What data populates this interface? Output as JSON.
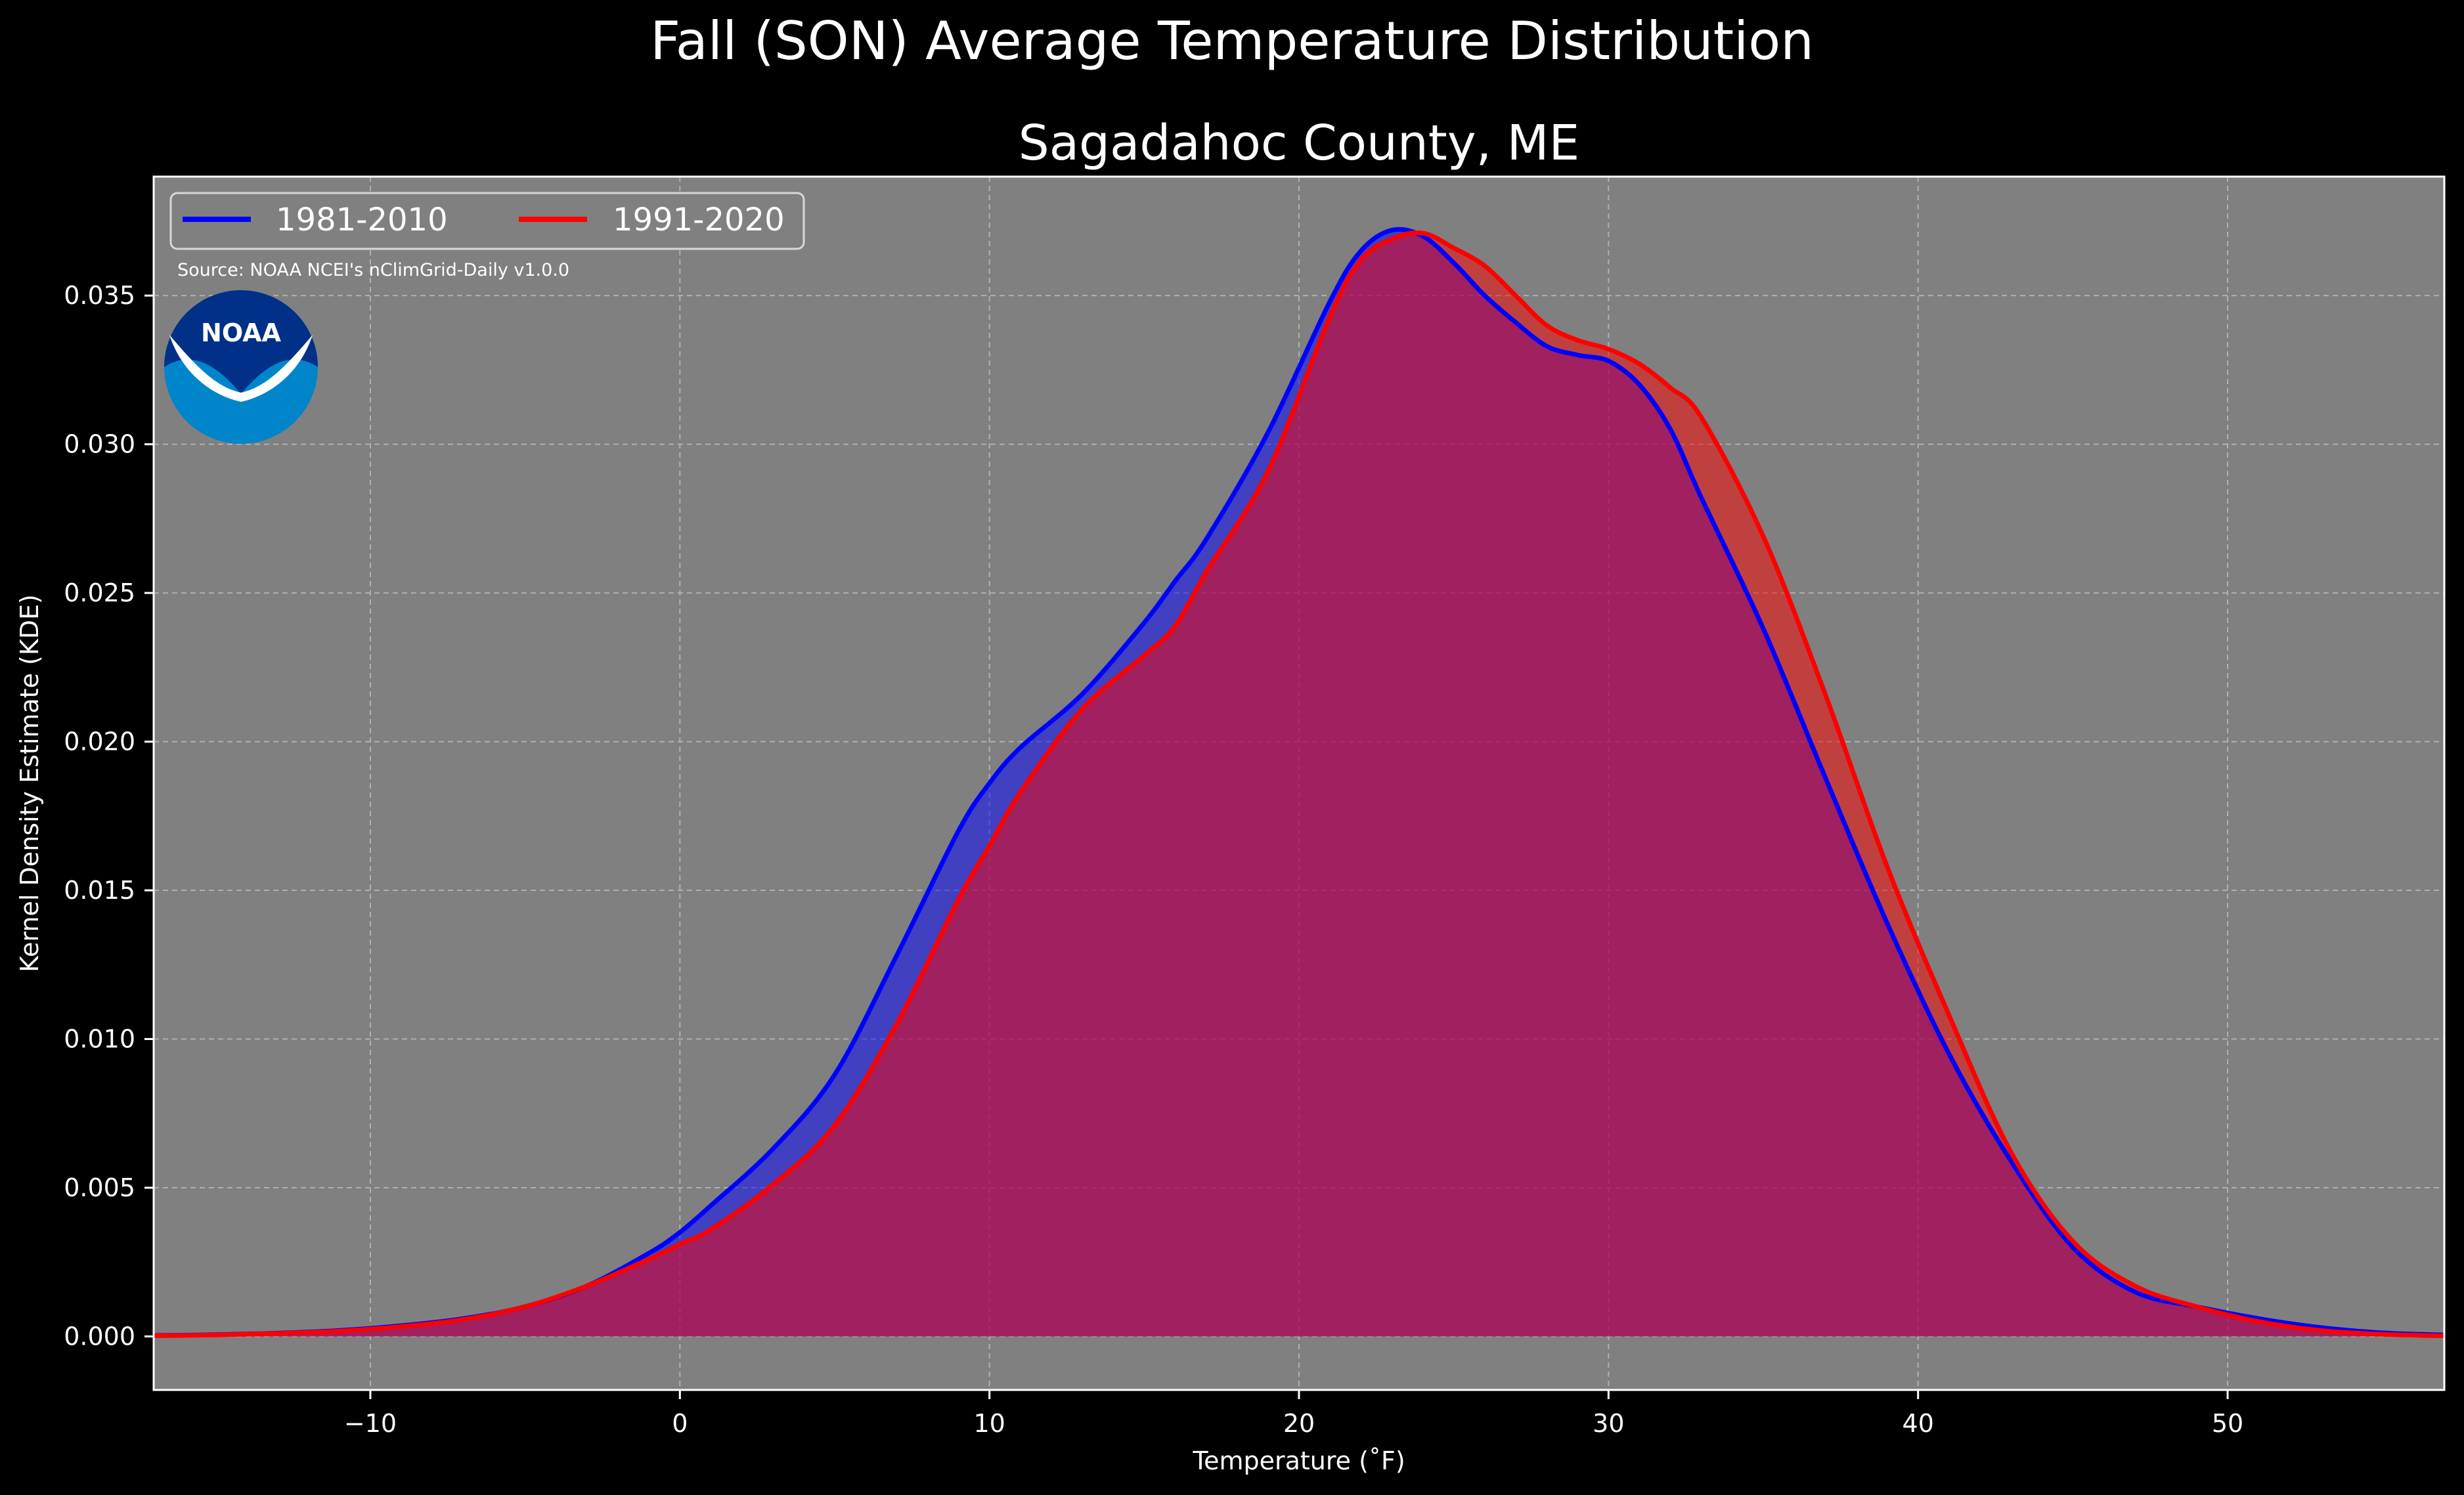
{
  "chart_data": {
    "type": "area",
    "title": "Fall (SON) Average Temperature Distribution",
    "subtitle": "Sagadahoc County, ME",
    "xlabel": "Temperature (˚F)",
    "ylabel": "Kernel Density Estimate (KDE)",
    "xlim": [
      -17,
      57
    ],
    "ylim": [
      -0.0018,
      0.039
    ],
    "xticks": [
      -10,
      0,
      10,
      20,
      30,
      40,
      50
    ],
    "xtick_labels": [
      "−10",
      "0",
      "10",
      "20",
      "30",
      "40",
      "50"
    ],
    "yticks": [
      0.0,
      0.005,
      0.01,
      0.015,
      0.02,
      0.025,
      0.03,
      0.035
    ],
    "ytick_labels": [
      "0.000",
      "0.005",
      "0.010",
      "0.015",
      "0.020",
      "0.025",
      "0.030",
      "0.035"
    ],
    "grid": true,
    "legend_placement": "top-left",
    "source_note": "Source: NOAA NCEI's nClimGrid-Daily v1.0.0",
    "logo_text": "NOAA",
    "colors": {
      "figure_bg": "#000000",
      "plot_bg": "#808080",
      "series_1": "#0000ff",
      "series_2": "#ff0000",
      "overlap_fill": "#9e1d5c",
      "logo_outer": "#0085ca",
      "logo_inner": "#003087"
    },
    "x": [
      -17,
      -15,
      -13,
      -11,
      -9,
      -7,
      -5,
      -3,
      -1,
      0,
      1,
      3,
      5,
      7,
      9,
      10,
      11,
      13,
      15,
      16,
      17,
      19,
      21,
      22,
      23,
      24,
      25,
      26,
      27,
      28,
      29,
      30,
      31,
      32,
      33,
      35,
      37,
      39,
      41,
      43,
      45,
      47,
      49,
      51,
      53,
      55,
      57
    ],
    "series": [
      {
        "name": "1981-2010",
        "color": "#0000ff",
        "values": [
          3e-05,
          6e-05,
          0.00011,
          0.0002,
          0.00036,
          0.0006,
          0.001,
          0.0017,
          0.0028,
          0.0035,
          0.0044,
          0.0063,
          0.0088,
          0.0128,
          0.017,
          0.0186,
          0.0198,
          0.0216,
          0.024,
          0.0254,
          0.0268,
          0.0304,
          0.0348,
          0.0365,
          0.0372,
          0.037,
          0.0361,
          0.035,
          0.0341,
          0.0333,
          0.033,
          0.0328,
          0.032,
          0.0305,
          0.0282,
          0.0238,
          0.0188,
          0.0139,
          0.0095,
          0.0059,
          0.003,
          0.0015,
          0.001,
          0.0006,
          0.0003,
          0.00012,
          5e-05
        ]
      },
      {
        "name": "1991-2020",
        "color": "#ff0000",
        "values": [
          2e-05,
          5e-05,
          0.0001,
          0.00018,
          0.00033,
          0.00057,
          0.001,
          0.0017,
          0.0026,
          0.0031,
          0.0036,
          0.0051,
          0.0071,
          0.0105,
          0.0147,
          0.0165,
          0.0183,
          0.0211,
          0.0229,
          0.0239,
          0.0257,
          0.0291,
          0.0343,
          0.0362,
          0.0369,
          0.0371,
          0.0366,
          0.036,
          0.035,
          0.034,
          0.0335,
          0.0332,
          0.0327,
          0.0319,
          0.0309,
          0.0269,
          0.0216,
          0.0158,
          0.0108,
          0.0062,
          0.0032,
          0.0017,
          0.001,
          0.0005,
          0.0002,
          7e-05,
          2e-05
        ]
      }
    ]
  }
}
